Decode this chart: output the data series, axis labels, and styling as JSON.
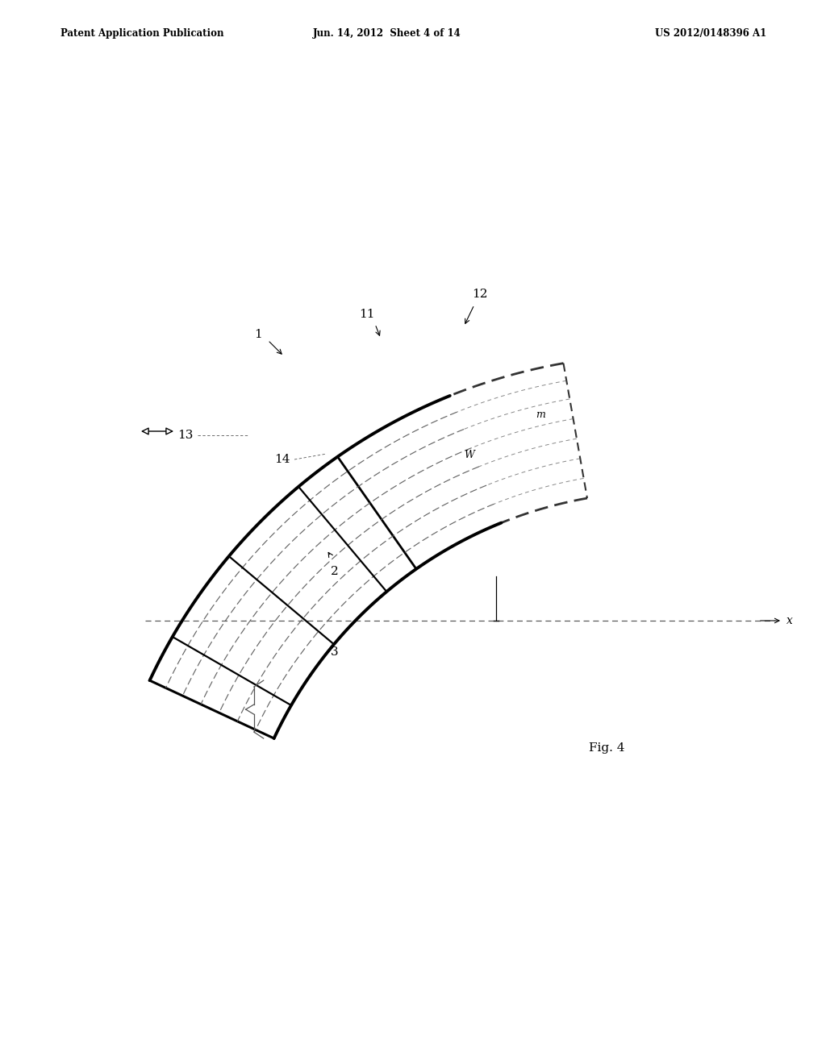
{
  "header_left": "Patent Application Publication",
  "header_center": "Jun. 14, 2012  Sheet 4 of 14",
  "header_right": "US 2012/0148396 A1",
  "fig_label": "Fig. 4",
  "background_color": "#ffffff",
  "line_color": "#000000",
  "dashed_color": "#555555",
  "label_1": "1",
  "label_2": "2",
  "label_3": "3",
  "label_11": "11",
  "label_12": "12",
  "label_13": "13",
  "label_14": "14",
  "label_m": "m",
  "label_w": "W",
  "label_x": "x"
}
